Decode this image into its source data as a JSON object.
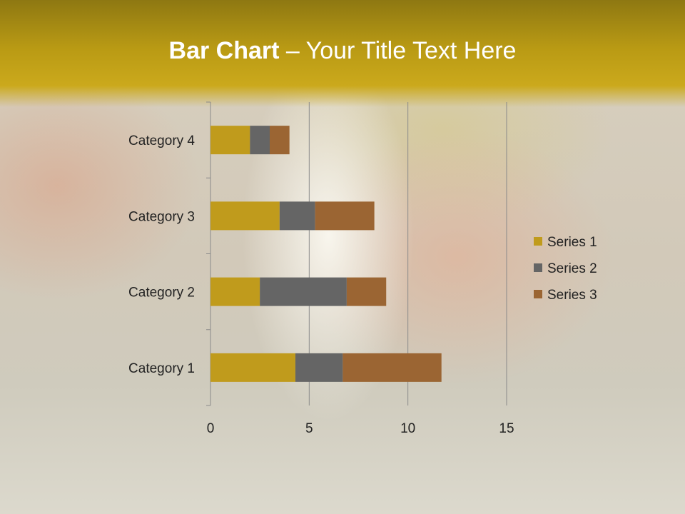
{
  "slide": {
    "title_bold": "Bar Chart",
    "title_rest": " – Your Title Text Here"
  },
  "chart_data": {
    "type": "bar",
    "orientation": "horizontal",
    "stacked": true,
    "categories": [
      "Category 1",
      "Category 2",
      "Category 3",
      "Category 4"
    ],
    "series": [
      {
        "name": "Series 1",
        "values": [
          4.3,
          2.5,
          3.5,
          2.0
        ],
        "color": "#C09B1C"
      },
      {
        "name": "Series 2",
        "values": [
          2.4,
          4.4,
          1.8,
          1.0
        ],
        "color": "#656565"
      },
      {
        "name": "Series 3",
        "values": [
          5.0,
          2.0,
          3.0,
          1.0
        ],
        "color": "#9B6533"
      }
    ],
    "xlim": [
      0,
      15
    ],
    "xticks": [
      0,
      5,
      10,
      15
    ],
    "grid": "vertical",
    "legend": "right"
  }
}
